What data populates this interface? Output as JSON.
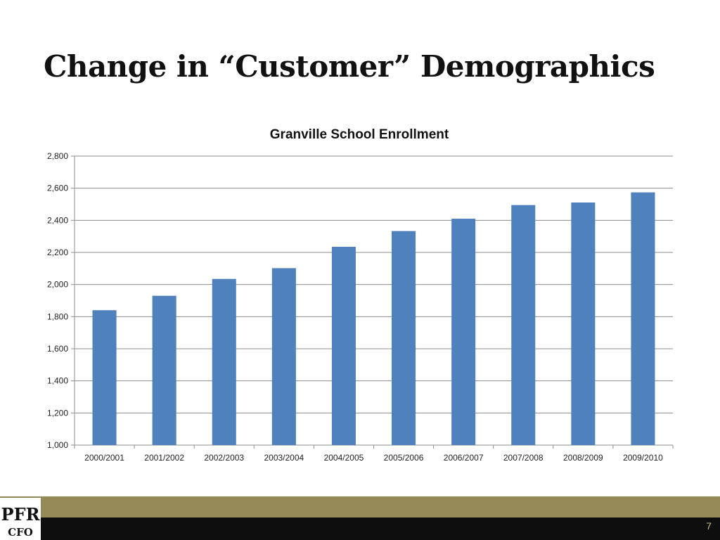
{
  "slide": {
    "title": "Change in “Customer” Demographics",
    "page_number": "7",
    "logo": {
      "text_top": "PFR",
      "text_bottom": "CFO"
    }
  },
  "colors": {
    "bar": "#4f81bd",
    "gridline": "#8c8c8c",
    "footer_band_top": "#938a57",
    "footer_band_bottom": "#0e0e0e"
  },
  "chart_data": {
    "type": "bar",
    "title": "Granville School Enrollment",
    "xlabel": "",
    "ylabel": "",
    "categories": [
      "2000/2001",
      "2001/2002",
      "2002/2003",
      "2003/2004",
      "2004/2005",
      "2005/2006",
      "2006/2007",
      "2007/2008",
      "2008/2009",
      "2009/2010"
    ],
    "values": [
      1840,
      1930,
      2035,
      2102,
      2235,
      2333,
      2410,
      2495,
      2511,
      2574
    ],
    "ylim": [
      1000,
      2800
    ],
    "yticks": [
      1000,
      1200,
      1400,
      1600,
      1800,
      2000,
      2200,
      2400,
      2600,
      2800
    ],
    "ytick_labels": [
      "1,000",
      "1,200",
      "1,400",
      "1,600",
      "1,800",
      "2,000",
      "2,200",
      "2,400",
      "2,600",
      "2,800"
    ],
    "grid": true,
    "legend": "none"
  }
}
